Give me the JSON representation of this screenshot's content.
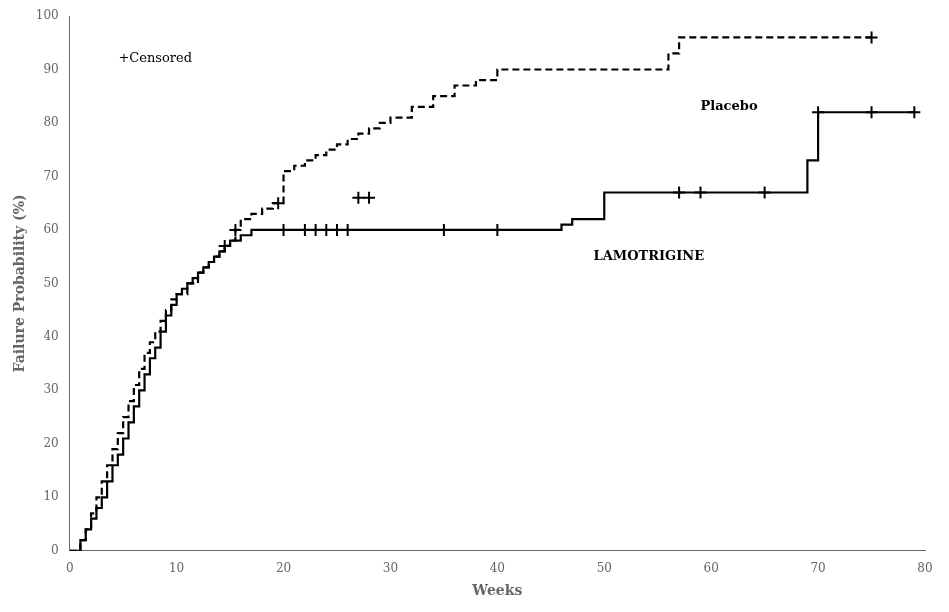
{
  "chart_data": {
    "type": "step",
    "xlabel": "Weeks",
    "ylabel": "Failure Probability (%)",
    "xlim": [
      0,
      80
    ],
    "ylim": [
      0,
      100
    ],
    "xticks": [
      0,
      10,
      20,
      30,
      40,
      50,
      60,
      70,
      80
    ],
    "yticks": [
      0,
      10,
      20,
      30,
      40,
      50,
      60,
      70,
      80,
      90,
      100
    ],
    "grid": false,
    "series": [
      {
        "name": "Placebo",
        "color": "#000000",
        "line_style": "dashed",
        "x": [
          0,
          1,
          1.5,
          2,
          2.5,
          3,
          3.5,
          4,
          4.5,
          5,
          5.5,
          6,
          6.5,
          7,
          7.5,
          8,
          8.5,
          9,
          9.5,
          10,
          11,
          12,
          12.5,
          13,
          13.5,
          14,
          14.5,
          15,
          15.5,
          16,
          17,
          18,
          19,
          20,
          21,
          22,
          23,
          24,
          25,
          26,
          27,
          28,
          29,
          30,
          32,
          34,
          36,
          38,
          40,
          45,
          55,
          56,
          57,
          75
        ],
        "values": [
          0,
          2,
          4,
          7,
          10,
          13,
          16,
          19,
          22,
          25,
          28,
          31,
          34,
          37,
          39,
          41,
          43,
          45,
          47,
          48,
          50,
          52,
          53,
          54,
          55,
          56,
          57,
          58,
          60,
          62,
          63,
          64,
          65,
          71,
          72,
          73,
          74,
          75,
          76,
          77,
          78,
          79,
          80,
          81,
          83,
          85,
          87,
          88,
          90,
          90,
          90,
          93,
          96,
          96
        ],
        "censored_x": [
          15.5,
          19.5,
          27,
          28,
          75
        ],
        "censored_y": [
          60,
          65,
          66,
          66,
          96
        ],
        "label_x": 59,
        "label_y": 83
      },
      {
        "name": "LAMOTRIGINE",
        "color": "#000000",
        "line_style": "solid",
        "x": [
          0,
          1,
          1.5,
          2,
          2.5,
          3,
          3.5,
          4,
          4.5,
          5,
          5.5,
          6,
          6.5,
          7,
          7.5,
          8,
          8.5,
          9,
          9.5,
          10,
          10.5,
          11,
          11.5,
          12,
          12.5,
          13,
          13.5,
          14,
          14.5,
          15,
          16,
          17,
          18,
          19,
          20,
          21,
          22,
          23,
          24,
          25,
          26,
          27,
          28,
          29,
          30,
          35,
          40,
          46,
          47,
          50,
          55,
          60,
          65,
          68,
          69,
          70,
          79
        ],
        "values": [
          0,
          2,
          4,
          6,
          8,
          10,
          13,
          16,
          18,
          21,
          24,
          27,
          30,
          33,
          36,
          38,
          41,
          44,
          46,
          48,
          49,
          50,
          51,
          52,
          53,
          54,
          55,
          56,
          57,
          58,
          59,
          60,
          60,
          60,
          60,
          60,
          60,
          60,
          60,
          60,
          60,
          60,
          60,
          60,
          60,
          60,
          60,
          61,
          62,
          67,
          67,
          67,
          67,
          67,
          73,
          82,
          82
        ],
        "censored_x": [
          14.5,
          20,
          22,
          23,
          24,
          25,
          26,
          35,
          40,
          57,
          59,
          65,
          70,
          75,
          79
        ],
        "censored_y": [
          57,
          60,
          60,
          60,
          60,
          60,
          60,
          60,
          60,
          67,
          67,
          67,
          82,
          82,
          82
        ],
        "label_x": 49,
        "label_y": 55
      }
    ],
    "annotations": [
      {
        "text": "+Censored",
        "x": 8,
        "y": 92
      }
    ]
  }
}
